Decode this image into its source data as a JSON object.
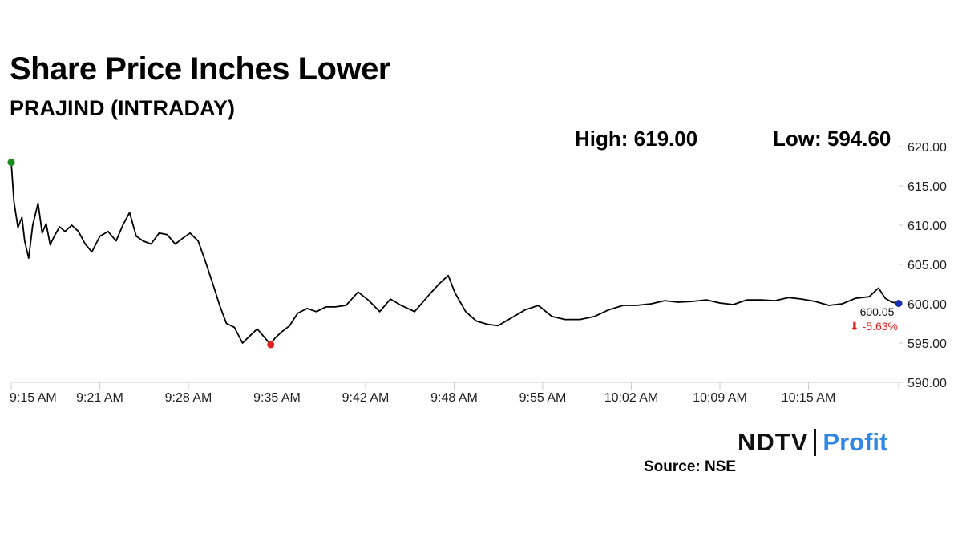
{
  "header": {
    "title": "Share Price Inches Lower",
    "subtitle": "PRAJIND (INTRADAY)"
  },
  "stats": {
    "high_label": "High: 619.00",
    "low_label": "Low: 594.60"
  },
  "footer": {
    "logo_ndtv": "NDTV",
    "logo_profit": "Profit",
    "source": "Source: NSE"
  },
  "chart_data": {
    "type": "line",
    "title": "Share Price Inches Lower",
    "subtitle": "PRAJIND (INTRADAY)",
    "xlabel": "",
    "ylabel": "",
    "ylim": [
      590,
      620
    ],
    "yticks": [
      "620.00",
      "615.00",
      "610.00",
      "605.00",
      "600.00",
      "595.00",
      "590.00"
    ],
    "xticks": [
      "9:15 AM",
      "9:21 AM",
      "9:28 AM",
      "9:35 AM",
      "9:42 AM",
      "9:48 AM",
      "9:55 AM",
      "10:02 AM",
      "10:09 AM",
      "10:15 AM"
    ],
    "grid": false,
    "line_color": "#000000",
    "high_marker_color": "#1a8a1a",
    "low_marker_color": "#e0201c",
    "last_marker_color": "#1a2fb0",
    "change_color": "#e0201c",
    "last_value_label": "600.05",
    "change_label": "⬇ -5.63%",
    "series": [
      {
        "x": [
          "9:15",
          "9:15",
          "9:15",
          "9:16",
          "9:16",
          "9:16",
          "9:17",
          "9:17",
          "9:17",
          "9:18",
          "9:18",
          "9:18",
          "9:19",
          "9:19",
          "9:20",
          "9:20",
          "9:21",
          "9:21",
          "9:22",
          "9:22",
          "9:23",
          "9:23",
          "9:24",
          "9:24",
          "9:25",
          "9:25",
          "9:26",
          "9:26",
          "9:27",
          "9:28",
          "9:28",
          "9:29",
          "9:30",
          "9:30",
          "9:31",
          "9:31",
          "9:32",
          "9:32",
          "9:33",
          "9:33",
          "9:34",
          "9:34",
          "9:35",
          "9:35",
          "9:36",
          "9:36",
          "9:37",
          "9:38",
          "9:38",
          "9:39",
          "9:40",
          "9:41",
          "9:42",
          "9:42",
          "9:43",
          "9:44",
          "9:45",
          "9:46",
          "9:47",
          "9:47",
          "9:48",
          "9:48",
          "9:49",
          "9:49",
          "9:50",
          "9:51",
          "9:52",
          "9:53",
          "9:54",
          "9:55",
          "9:56",
          "9:57",
          "9:58",
          "9:59",
          "10:00",
          "10:01",
          "10:02",
          "10:03",
          "10:04",
          "10:05",
          "10:06",
          "10:07",
          "10:08",
          "10:09",
          "10:10",
          "10:11",
          "10:12",
          "10:13",
          "10:14",
          "10:15",
          "10:16",
          "10:17",
          "10:18",
          "10:19",
          "10:20",
          "10:21"
        ],
        "t": [
          0,
          0.2,
          0.5,
          0.8,
          1.0,
          1.3,
          1.6,
          2.0,
          2.3,
          2.6,
          2.9,
          3.2,
          3.6,
          4.0,
          4.5,
          5.0,
          5.5,
          6.0,
          6.6,
          7.2,
          7.8,
          8.3,
          8.8,
          9.3,
          9.8,
          10.4,
          11.0,
          11.6,
          12.2,
          12.8,
          13.3,
          13.9,
          14.4,
          15.0,
          15.5,
          16.0,
          16.6,
          17.2,
          17.8,
          18.3,
          18.8,
          19.3,
          19.6,
          20.1,
          20.7,
          21.3,
          22.0,
          22.7,
          23.4,
          24.1,
          24.9,
          25.8,
          26.6,
          27.4,
          28.2,
          29.0,
          30.0,
          31.0,
          31.8,
          32.5,
          33.0,
          33.8,
          34.6,
          35.4,
          36.2,
          37.2,
          38.2,
          39.2,
          40.2,
          41.2,
          42.3,
          43.4,
          44.4,
          45.5,
          46.5,
          47.6,
          48.6,
          49.6,
          50.6,
          51.7,
          52.7,
          53.7,
          54.7,
          55.8,
          56.8,
          57.8,
          58.8,
          59.8,
          60.8,
          61.8,
          62.8,
          63.8,
          64.5,
          65.0,
          65.5,
          66.0
        ],
        "y": [
          618.0,
          613.0,
          609.7,
          611.0,
          608.0,
          605.8,
          610.0,
          612.8,
          609.0,
          610.2,
          607.5,
          608.6,
          609.8,
          609.2,
          610.0,
          609.2,
          607.6,
          606.6,
          608.6,
          609.2,
          608.0,
          610.0,
          611.6,
          608.6,
          608.0,
          607.6,
          609.0,
          608.8,
          607.6,
          608.4,
          609.0,
          608.0,
          605.6,
          602.5,
          599.8,
          597.5,
          597.0,
          595.0,
          596.0,
          596.8,
          595.8,
          594.8,
          595.6,
          596.4,
          597.2,
          598.8,
          599.4,
          599.0,
          599.6,
          599.6,
          599.8,
          601.5,
          600.4,
          599.0,
          600.6,
          599.8,
          599.0,
          601.0,
          602.5,
          603.6,
          601.4,
          599.0,
          597.8,
          597.4,
          597.2,
          598.2,
          599.2,
          599.8,
          598.4,
          598.0,
          598.0,
          598.4,
          599.2,
          599.8,
          599.8,
          600.0,
          600.4,
          600.2,
          600.3,
          600.5,
          600.1,
          599.9,
          600.5,
          600.5,
          600.4,
          600.8,
          600.6,
          600.3,
          599.8,
          600.0,
          600.7,
          600.9,
          602.0,
          600.7,
          600.2,
          600.05
        ]
      }
    ]
  }
}
